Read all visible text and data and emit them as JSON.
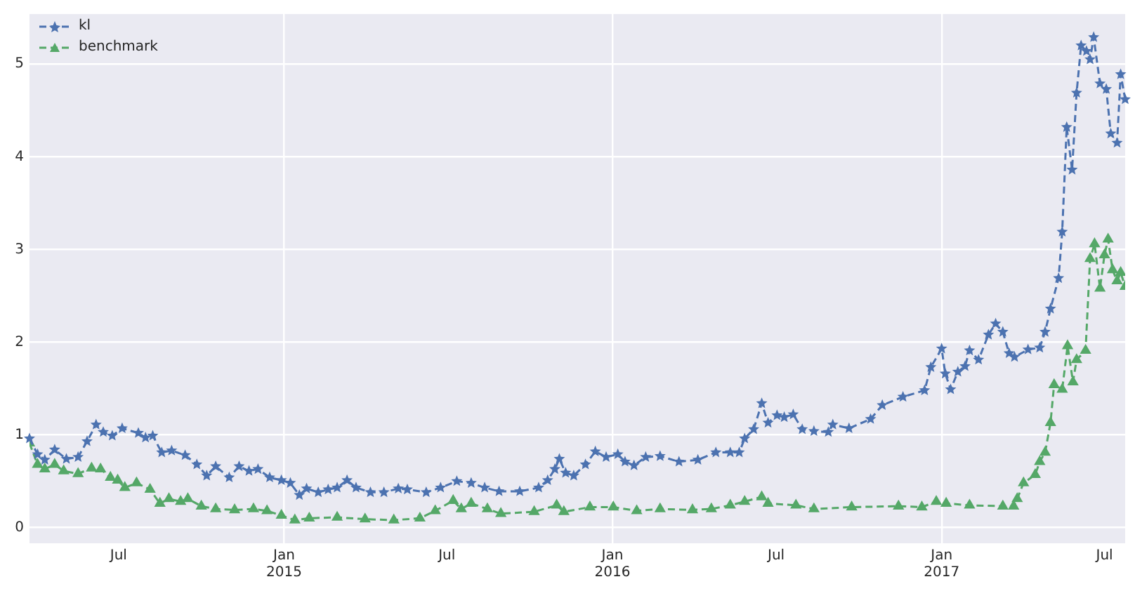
{
  "chart_data": {
    "type": "line",
    "legend": "top left",
    "grid": true,
    "line_style": "dashed",
    "xlim": [
      "2014-03-24",
      "2017-07-24"
    ],
    "xticks": [
      {
        "value": "2014-07-01",
        "label": "Jul"
      },
      {
        "value": "2015-01-01",
        "label": "Jan\n2015"
      },
      {
        "value": "2015-07-01",
        "label": "Jul"
      },
      {
        "value": "2016-01-01",
        "label": "Jan\n2016"
      },
      {
        "value": "2016-07-01",
        "label": "Jul"
      },
      {
        "value": "2017-01-01",
        "label": "Jan\n2017"
      },
      {
        "value": "2017-07-01",
        "label": "Jul"
      }
    ],
    "ylim": [
      -0.17,
      5.54
    ],
    "yticks": [
      0,
      1,
      2,
      3,
      4,
      5
    ],
    "series": [
      {
        "name": "kl",
        "color": "#4c72b0",
        "marker": "star",
        "x": [
          "2014-03-24",
          "2014-04-02",
          "2014-04-10",
          "2014-04-21",
          "2014-05-04",
          "2014-05-17",
          "2014-05-27",
          "2014-06-06",
          "2014-06-14",
          "2014-06-24",
          "2014-07-05",
          "2014-07-23",
          "2014-07-31",
          "2014-08-08",
          "2014-08-18",
          "2014-08-29",
          "2014-09-13",
          "2014-09-26",
          "2014-10-07",
          "2014-10-17",
          "2014-11-01",
          "2014-11-12",
          "2014-11-23",
          "2014-12-03",
          "2014-12-16",
          "2014-12-29",
          "2015-01-08",
          "2015-01-18",
          "2015-01-26",
          "2015-02-08",
          "2015-02-19",
          "2015-03-01",
          "2015-03-12",
          "2015-03-22",
          "2015-04-07",
          "2015-04-22",
          "2015-05-08",
          "2015-05-18",
          "2015-06-08",
          "2015-06-24",
          "2015-07-12",
          "2015-07-28",
          "2015-08-12",
          "2015-08-28",
          "2015-09-20",
          "2015-10-11",
          "2015-10-21",
          "2015-10-29",
          "2015-11-03",
          "2015-11-10",
          "2015-11-19",
          "2015-12-02",
          "2015-12-13",
          "2015-12-25",
          "2016-01-07",
          "2016-01-15",
          "2016-01-25",
          "2016-02-07",
          "2016-02-23",
          "2016-03-15",
          "2016-04-05",
          "2016-04-25",
          "2016-05-11",
          "2016-05-21",
          "2016-05-27",
          "2016-06-06",
          "2016-06-15",
          "2016-06-22",
          "2016-07-02",
          "2016-07-10",
          "2016-07-20",
          "2016-07-30",
          "2016-08-12",
          "2016-08-28",
          "2016-09-02",
          "2016-09-20",
          "2016-10-14",
          "2016-10-27",
          "2016-11-19",
          "2016-12-13",
          "2016-12-20",
          "2017-01-01",
          "2017-01-05",
          "2017-01-11",
          "2017-01-19",
          "2017-01-27",
          "2017-02-01",
          "2017-02-11",
          "2017-02-22",
          "2017-03-02",
          "2017-03-10",
          "2017-03-17",
          "2017-03-23",
          "2017-04-07",
          "2017-04-20",
          "2017-04-26",
          "2017-05-02",
          "2017-05-11",
          "2017-05-15",
          "2017-05-20",
          "2017-05-26",
          "2017-05-31",
          "2017-06-05",
          "2017-06-11",
          "2017-06-15",
          "2017-06-19",
          "2017-06-26",
          "2017-07-03",
          "2017-07-08",
          "2017-07-15",
          "2017-07-19",
          "2017-07-24"
        ],
        "values": [
          0.96,
          0.79,
          0.73,
          0.84,
          0.74,
          0.76,
          0.93,
          1.11,
          1.03,
          0.99,
          1.07,
          1.02,
          0.97,
          0.99,
          0.81,
          0.83,
          0.78,
          0.68,
          0.56,
          0.66,
          0.54,
          0.66,
          0.61,
          0.63,
          0.54,
          0.51,
          0.48,
          0.35,
          0.42,
          0.38,
          0.41,
          0.43,
          0.51,
          0.43,
          0.38,
          0.38,
          0.42,
          0.41,
          0.38,
          0.43,
          0.5,
          0.48,
          0.43,
          0.39,
          0.39,
          0.43,
          0.51,
          0.63,
          0.74,
          0.59,
          0.56,
          0.68,
          0.82,
          0.76,
          0.79,
          0.71,
          0.67,
          0.76,
          0.77,
          0.71,
          0.73,
          0.81,
          0.81,
          0.81,
          0.96,
          1.06,
          1.34,
          1.13,
          1.21,
          1.19,
          1.22,
          1.06,
          1.04,
          1.03,
          1.11,
          1.07,
          1.17,
          1.32,
          1.41,
          1.48,
          1.73,
          1.93,
          1.66,
          1.49,
          1.68,
          1.74,
          1.91,
          1.81,
          2.08,
          2.2,
          2.11,
          1.88,
          1.84,
          1.92,
          1.94,
          2.11,
          2.36,
          2.69,
          3.19,
          4.32,
          3.86,
          4.69,
          5.2,
          5.14,
          5.05,
          5.29,
          4.79,
          4.73,
          4.25,
          4.15,
          4.89,
          4.62
        ]
      },
      {
        "name": "benchmark",
        "color": "#55a868",
        "marker": "triangle",
        "x": [
          "2014-03-24",
          "2014-04-02",
          "2014-04-10",
          "2014-04-21",
          "2014-05-01",
          "2014-05-17",
          "2014-06-01",
          "2014-06-11",
          "2014-06-22",
          "2014-06-30",
          "2014-07-08",
          "2014-07-21",
          "2014-08-05",
          "2014-08-16",
          "2014-08-26",
          "2014-09-08",
          "2014-09-16",
          "2014-10-01",
          "2014-10-17",
          "2014-11-07",
          "2014-11-28",
          "2014-12-13",
          "2014-12-29",
          "2015-01-13",
          "2015-01-29",
          "2015-03-01",
          "2015-04-01",
          "2015-05-03",
          "2015-06-01",
          "2015-06-18",
          "2015-07-08",
          "2015-07-17",
          "2015-07-28",
          "2015-08-15",
          "2015-08-30",
          "2015-10-06",
          "2015-10-31",
          "2015-11-08",
          "2015-12-07",
          "2016-01-02",
          "2016-01-28",
          "2016-02-23",
          "2016-03-30",
          "2016-04-20",
          "2016-05-11",
          "2016-05-27",
          "2016-06-15",
          "2016-06-22",
          "2016-07-23",
          "2016-08-12",
          "2016-09-23",
          "2016-11-14",
          "2016-12-10",
          "2016-12-26",
          "2017-01-06",
          "2017-02-01",
          "2017-03-10",
          "2017-03-22",
          "2017-03-26",
          "2017-04-02",
          "2017-04-15",
          "2017-04-20",
          "2017-04-26",
          "2017-05-02",
          "2017-05-06",
          "2017-05-15",
          "2017-05-21",
          "2017-05-27",
          "2017-05-31",
          "2017-06-10",
          "2017-06-15",
          "2017-06-20",
          "2017-06-26",
          "2017-07-01",
          "2017-07-05",
          "2017-07-10",
          "2017-07-15",
          "2017-07-19",
          "2017-07-24"
        ],
        "values": [
          0.91,
          0.68,
          0.63,
          0.68,
          0.61,
          0.58,
          0.64,
          0.63,
          0.54,
          0.51,
          0.43,
          0.48,
          0.41,
          0.26,
          0.31,
          0.28,
          0.31,
          0.23,
          0.2,
          0.19,
          0.2,
          0.18,
          0.13,
          0.08,
          0.1,
          0.11,
          0.09,
          0.08,
          0.1,
          0.18,
          0.29,
          0.2,
          0.26,
          0.2,
          0.15,
          0.17,
          0.24,
          0.17,
          0.22,
          0.22,
          0.18,
          0.2,
          0.19,
          0.2,
          0.24,
          0.28,
          0.33,
          0.26,
          0.24,
          0.2,
          0.22,
          0.23,
          0.22,
          0.28,
          0.26,
          0.24,
          0.23,
          0.23,
          0.31,
          0.48,
          0.57,
          0.71,
          0.81,
          1.13,
          1.54,
          1.49,
          1.96,
          1.57,
          1.81,
          1.91,
          2.9,
          3.06,
          2.58,
          2.94,
          3.11,
          2.78,
          2.66,
          2.75,
          2.6
        ]
      }
    ]
  }
}
